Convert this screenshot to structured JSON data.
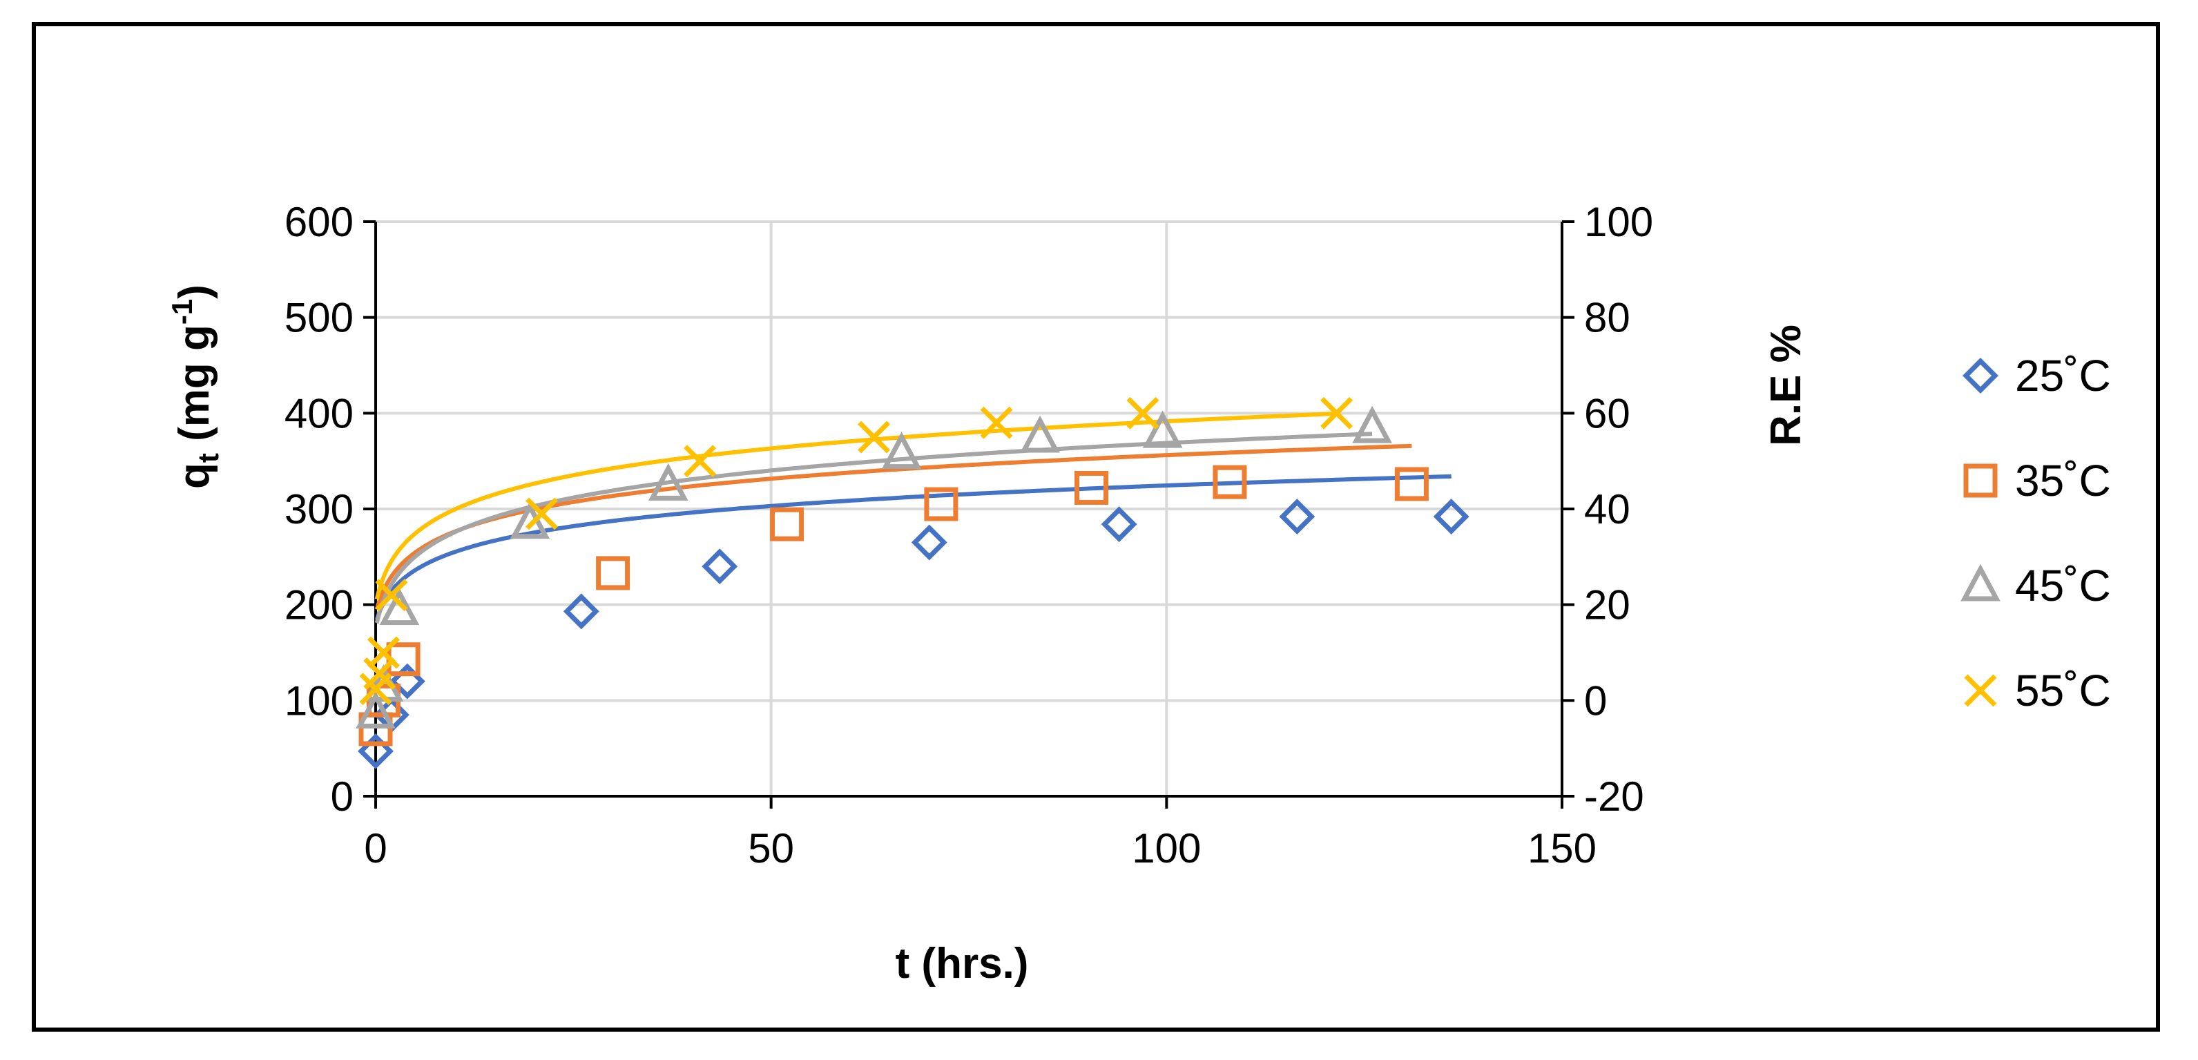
{
  "chart_data": {
    "type": "scatter",
    "title": "",
    "xlabel": "t (hrs.)",
    "ylabel_main": "q",
    "ylabel_sub": "t",
    "ylabel_unit_open": " (mg g",
    "ylabel_unit_sup": "-1",
    "ylabel_unit_close": ")",
    "y2label": "R.E %",
    "xlim": [
      0,
      150
    ],
    "ylim": [
      0,
      600
    ],
    "y2lim": [
      -20,
      100
    ],
    "xticks": [
      0,
      50,
      100,
      150
    ],
    "yticks": [
      0,
      100,
      200,
      300,
      400,
      500,
      600
    ],
    "y2ticks": [
      -20,
      0,
      20,
      40,
      60,
      80,
      100
    ],
    "grid": true,
    "legend_position": "right",
    "series": [
      {
        "name": "25˚C",
        "color": "#4472C4",
        "marker": "diamond",
        "x": [
          0,
          2,
          4,
          26,
          43.5,
          70,
          94,
          116.5,
          136
        ],
        "y": [
          47,
          85,
          120,
          193,
          240,
          265,
          284,
          292,
          292
        ],
        "fit": {
          "a": 180,
          "b": 31.3,
          "x_end": 136
        }
      },
      {
        "name": "35˚C",
        "color": "#ED7D31",
        "marker": "square",
        "x": [
          0,
          1,
          3.5,
          30,
          52,
          71.5,
          90.5,
          108,
          131
        ],
        "y": [
          70,
          100,
          143,
          233,
          284,
          305,
          322,
          328,
          326
        ],
        "fit": {
          "a": 190,
          "b": 36,
          "x_end": 131
        }
      },
      {
        "name": "45˚C",
        "color": "#A5A5A5",
        "marker": "triangle",
        "x": [
          0,
          1,
          3,
          19.5,
          37,
          66.5,
          84,
          99.5,
          126
        ],
        "y": [
          87,
          115,
          195,
          285,
          325,
          358,
          375,
          380,
          385
        ],
        "fit": {
          "a": 175,
          "b": 42,
          "x_end": 126
        }
      },
      {
        "name": "55˚C",
        "color": "#FFC000",
        "marker": "cross",
        "x": [
          0,
          0.5,
          1,
          2,
          21,
          41,
          63,
          78.5,
          97,
          121.5
        ],
        "y": [
          112,
          128,
          150,
          210,
          295,
          350,
          375,
          390,
          400,
          400
        ],
        "fit": {
          "a": 200,
          "b": 41.5,
          "x_end": 121.5
        }
      }
    ]
  }
}
